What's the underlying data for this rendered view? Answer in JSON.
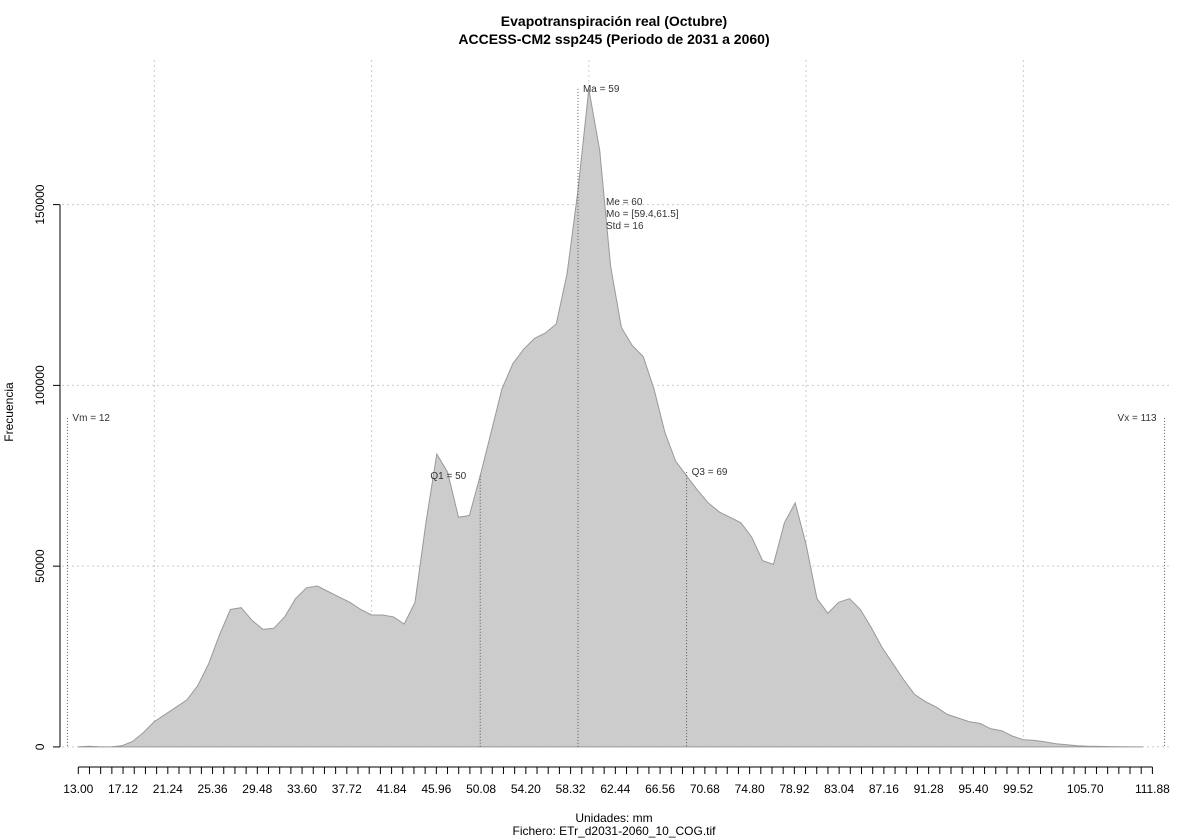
{
  "chart_data": {
    "type": "area",
    "title": "Evapotranspiración real (Octubre)",
    "subtitle": "ACCESS-CM2 ssp245 (Periodo de 2031 a 2060)",
    "xlabel": "Unidades: mm",
    "footer": "Fichero: ETr_d2031-2060_10_COG.tif",
    "ylabel": "Frecuencia",
    "xlim": [
      11.5,
      113.5
    ],
    "ylim": [
      -5000,
      190000
    ],
    "grid": true,
    "fill_color": "#cccccc",
    "line_color": "#999999",
    "x_ticks": [
      13.0,
      14.03,
      15.06,
      16.09,
      17.12,
      18.15,
      19.18,
      20.21,
      21.24,
      22.27,
      23.3,
      24.33,
      25.36,
      26.39,
      27.42,
      28.45,
      29.48,
      30.51,
      31.54,
      32.57,
      33.6,
      34.63,
      35.66,
      36.69,
      37.72,
      38.75,
      39.78,
      40.81,
      41.84,
      42.87,
      43.9,
      44.93,
      45.96,
      46.99,
      48.02,
      49.05,
      50.08,
      51.11,
      52.14,
      53.17,
      54.2,
      55.23,
      56.26,
      57.29,
      58.32,
      59.35,
      60.38,
      61.41,
      62.44,
      63.47,
      64.5,
      65.53,
      66.56,
      67.59,
      68.62,
      69.65,
      70.68,
      71.71,
      72.74,
      73.77,
      74.8,
      75.83,
      76.86,
      77.89,
      78.92,
      79.95,
      80.98,
      82.01,
      83.04,
      84.07,
      85.1,
      86.13,
      87.16,
      88.19,
      89.22,
      90.25,
      91.28,
      92.31,
      93.34,
      94.37,
      95.4,
      96.43,
      97.46,
      98.49,
      99.52,
      100.55,
      101.58,
      102.61,
      103.64,
      104.67,
      105.7,
      106.73,
      107.76,
      108.79,
      109.82,
      110.85,
      111.88
    ],
    "x_tick_labels": [
      "13.00",
      "17.12",
      "21.24",
      "25.36",
      "29.48",
      "33.60",
      "37.72",
      "41.84",
      "45.96",
      "50.08",
      "54.20",
      "58.32",
      "62.44",
      "66.56",
      "70.68",
      "74.80",
      "78.92",
      "83.04",
      "87.16",
      "91.28",
      "95.40",
      "99.52",
      "105.70",
      "111.88"
    ],
    "y_ticks": [
      0,
      50000,
      100000,
      150000
    ],
    "x_grid": [
      20,
      40,
      60,
      80,
      100
    ],
    "x": [
      13,
      14,
      15,
      16,
      17,
      18,
      19,
      20,
      21,
      22,
      23,
      24,
      25,
      26,
      27,
      28,
      29,
      30,
      31,
      32,
      33,
      34,
      35,
      36,
      37,
      38,
      39,
      40,
      41,
      42,
      43,
      44,
      45,
      46,
      47,
      48,
      49,
      50,
      51,
      52,
      53,
      54,
      55,
      56,
      57,
      58,
      59,
      60,
      61,
      62,
      63,
      64,
      65,
      66,
      67,
      68,
      69,
      70,
      71,
      72,
      73,
      74,
      75,
      76,
      77,
      78,
      79,
      80,
      81,
      82,
      83,
      84,
      85,
      86,
      87,
      88,
      89,
      90,
      91,
      92,
      93,
      94,
      95,
      96,
      97,
      98,
      99,
      100,
      101,
      102,
      103,
      104,
      105,
      106,
      107,
      108,
      109,
      110,
      111
    ],
    "values": [
      0,
      200,
      0,
      0,
      300,
      1500,
      4000,
      7000,
      9000,
      11000,
      13000,
      17000,
      23000,
      31000,
      38000,
      38500,
      35000,
      32500,
      32800,
      36000,
      41000,
      44000,
      44500,
      43000,
      41500,
      40000,
      38000,
      36500,
      36500,
      36000,
      34000,
      40000,
      62000,
      81000,
      76000,
      63500,
      64000,
      75000,
      87000,
      99000,
      106000,
      110000,
      113000,
      114500,
      117000,
      131000,
      154000,
      182000,
      165000,
      133000,
      116000,
      111000,
      108000,
      99000,
      87000,
      79000,
      75000,
      71000,
      67500,
      65000,
      63500,
      62000,
      58000,
      51500,
      50500,
      62000,
      67500,
      56000,
      41000,
      37000,
      40000,
      41000,
      38000,
      33000,
      27500,
      23000,
      18500,
      14500,
      12500,
      11000,
      9000,
      8000,
      7000,
      6500,
      5000,
      4500,
      3000,
      2000,
      1800,
      1400,
      900,
      600,
      300,
      200,
      150,
      100,
      50,
      0,
      0
    ],
    "reference_lines": [
      {
        "x": 12,
        "label": "Vm = 12",
        "top": 91000,
        "label_side": "right"
      },
      {
        "x": 50,
        "label": "Q1 = 50",
        "top": 75000,
        "label_side": "left"
      },
      {
        "x": 59,
        "label": "Ma = 59",
        "top": 182000,
        "label_side": "right"
      },
      {
        "x": 69,
        "label": "Q3 = 69",
        "top": 76000,
        "label_side": "right"
      },
      {
        "x": 113,
        "label": "Vx = 113",
        "top": 91000,
        "label_side": "left"
      }
    ],
    "stats": [
      "Me = 60",
      "Mo = [59.4,61.5]",
      "Std = 16"
    ]
  }
}
